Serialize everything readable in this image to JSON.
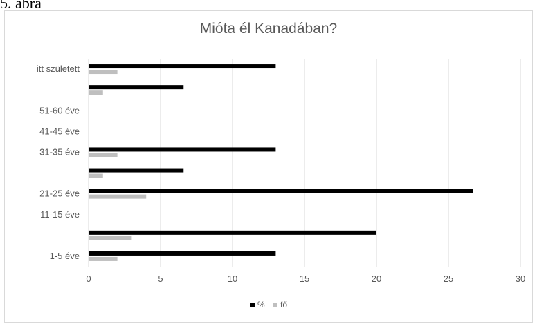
{
  "caption": "5. ábra",
  "chart_data": {
    "type": "bar",
    "orientation": "horizontal",
    "title": "Mióta él Kanadában?",
    "categories": [
      "1-5 éve",
      "",
      "11-15 éve",
      "21-25 éve",
      "",
      "31-35 éve",
      "41-45 éve",
      "51-60 éve",
      "",
      "itt született"
    ],
    "series": [
      {
        "name": "%",
        "color": "#000000",
        "values": [
          13,
          20,
          0,
          26.7,
          6.6,
          13,
          0,
          0,
          6.6,
          13
        ]
      },
      {
        "name": "fő",
        "color": "#bfbfbf",
        "values": [
          2,
          3,
          0,
          4,
          1,
          2,
          0,
          0,
          1,
          2
        ]
      }
    ],
    "xlim": [
      0,
      30
    ],
    "xticks": [
      0,
      5,
      10,
      15,
      20,
      25,
      30
    ],
    "grid": true,
    "legend_position": "bottom"
  }
}
